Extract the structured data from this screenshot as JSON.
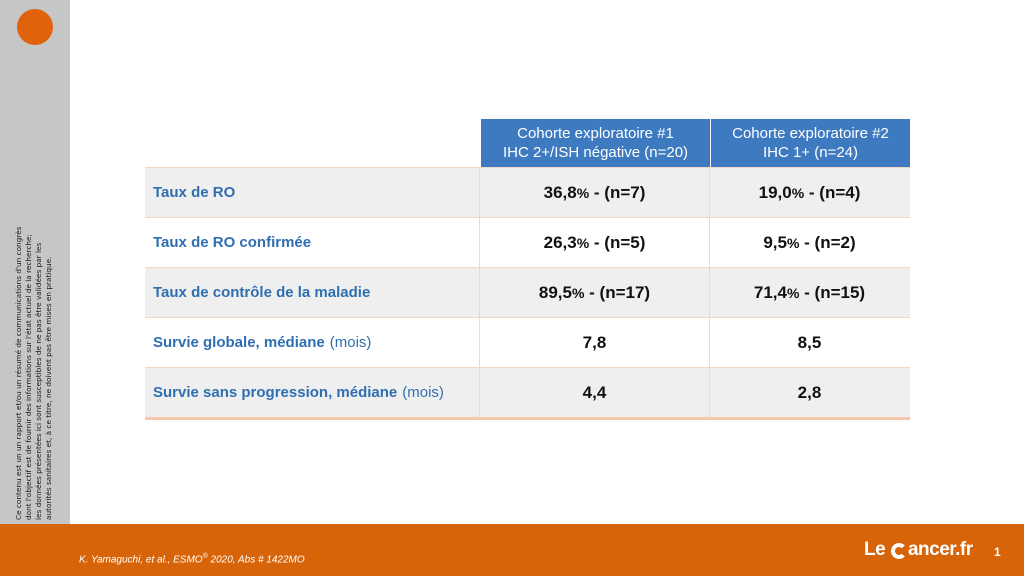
{
  "sidebar": {
    "disclaimer_lines": [
      "Ce contenu est un un rapport et/ou un résumé de communications d'un congrès",
      "dont l'objectif est de fournir des informations sur l'état actuel de la recherche;",
      "les données présentées ici sont susceptibles de ne pas être validées par les",
      "autorités sanitaires et, à ce titre, ne doivent pas être mises en pratique."
    ]
  },
  "table": {
    "headers": [
      {
        "line1": "Cohorte exploratoire #1",
        "line2": "IHC 2+/ISH négative (n=20)"
      },
      {
        "line1": "Cohorte exploratoire #2",
        "line2": "IHC 1+ (n=24)"
      }
    ],
    "rows": [
      {
        "label": "Taux de RO",
        "unit": "",
        "c1_main": "36,8",
        "c1_pct": "%",
        "c1_rest": " - (n=7)",
        "c2_main": "19,0",
        "c2_pct": "%",
        "c2_rest": " - (n=4)"
      },
      {
        "label": "Taux de RO confirmée",
        "unit": "",
        "c1_main": "26,3",
        "c1_pct": "%",
        "c1_rest": " - (n=5)",
        "c2_main": "9,5",
        "c2_pct": "%",
        "c2_rest": " - (n=2)"
      },
      {
        "label": "Taux de contrôle de la maladie",
        "unit": "",
        "c1_main": "89,5",
        "c1_pct": "%",
        "c1_rest": " - (n=17)",
        "c2_main": "71,4",
        "c2_pct": "%",
        "c2_rest": " - (n=15)"
      },
      {
        "label": "Survie globale, médiane",
        "unit": "(mois)",
        "c1_main": "7,8",
        "c1_pct": "",
        "c1_rest": "",
        "c2_main": "8,5",
        "c2_pct": "",
        "c2_rest": ""
      },
      {
        "label": "Survie sans progression, médiane",
        "unit": "(mois)",
        "c1_main": "4,4",
        "c1_pct": "",
        "c1_rest": "",
        "c2_main": "2,8",
        "c2_pct": "",
        "c2_rest": ""
      }
    ]
  },
  "footer": {
    "citation_main": "K. Yamaguchi, et al., ESMO",
    "citation_sup": "®",
    "citation_rest": " 2020, Abs # 1422MO",
    "logo_before": "Le ",
    "logo_after": "ancer.fr",
    "page_number": "1"
  },
  "colors": {
    "accent_orange": "#d86409",
    "header_blue": "#3d7ac0",
    "label_blue": "#2f6fb1"
  }
}
